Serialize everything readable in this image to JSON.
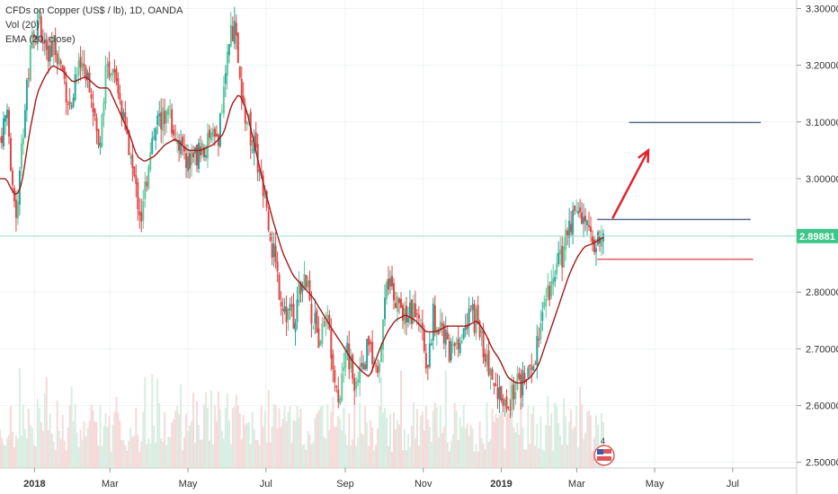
{
  "legend": {
    "title": "CFDs on Copper (US$ / lb), 1D, OANDA",
    "vol": "Vol (20)",
    "ema": "EMA (20, close)"
  },
  "colors": {
    "up": "#26a69a",
    "up_light": "#5ec99b",
    "down": "#e04646",
    "ema": "#a01a1a",
    "volume_up": "#d8eee2",
    "volume_down": "#f6dada",
    "current_line": "#9edbc3",
    "price_tag": "#3ec78a",
    "resistance": "#5b6c8f",
    "support": "#e55a6a",
    "arrow": "#e0242f"
  },
  "current_price_label": "2.89881",
  "flag_label": "4",
  "chart_data": {
    "type": "candlestick",
    "title": "CFDs on Copper (US$ / lb), 1D, OANDA",
    "y_ticks": [
      "3.30000",
      "3.20000",
      "3.10000",
      "3.00000",
      "2.80000",
      "2.70000",
      "2.60000",
      "2.50000"
    ],
    "y_tick_values": [
      3.3,
      3.2,
      3.1,
      3.0,
      2.8,
      2.7,
      2.6,
      2.5
    ],
    "ylim": [
      2.49,
      3.315
    ],
    "x_labels": [
      {
        "label": "2018",
        "t": 0,
        "bold": true
      },
      {
        "label": "Mar",
        "t": 59,
        "bold": false
      },
      {
        "label": "May",
        "t": 120,
        "bold": false
      },
      {
        "label": "Jul",
        "t": 181,
        "bold": false
      },
      {
        "label": "Sep",
        "t": 243,
        "bold": false
      },
      {
        "label": "Nov",
        "t": 304,
        "bold": false
      },
      {
        "label": "2019",
        "t": 365,
        "bold": true
      },
      {
        "label": "Mar",
        "t": 424,
        "bold": false
      },
      {
        "label": "May",
        "t": 485,
        "bold": false
      },
      {
        "label": "Jul",
        "t": 546,
        "bold": false
      }
    ],
    "xlim_days": [
      -27,
      596
    ],
    "last_day": 445,
    "current_price": 2.89881,
    "price_path": [
      [
        -27,
        3.07
      ],
      [
        -22,
        3.12
      ],
      [
        -18,
        2.98
      ],
      [
        -14,
        2.93
      ],
      [
        -10,
        3.05
      ],
      [
        -6,
        3.17
      ],
      [
        -2,
        3.24
      ],
      [
        3,
        3.29
      ],
      [
        10,
        3.2
      ],
      [
        16,
        3.23
      ],
      [
        22,
        3.19
      ],
      [
        28,
        3.12
      ],
      [
        33,
        3.19
      ],
      [
        38,
        3.21
      ],
      [
        44,
        3.17
      ],
      [
        50,
        3.05
      ],
      [
        56,
        3.2
      ],
      [
        62,
        3.18
      ],
      [
        68,
        3.11
      ],
      [
        74,
        3.05
      ],
      [
        80,
        2.97
      ],
      [
        84,
        2.93
      ],
      [
        90,
        3.05
      ],
      [
        96,
        3.1
      ],
      [
        104,
        3.12
      ],
      [
        112,
        3.07
      ],
      [
        120,
        3.03
      ],
      [
        128,
        3.05
      ],
      [
        136,
        3.06
      ],
      [
        144,
        3.07
      ],
      [
        150,
        3.2
      ],
      [
        156,
        3.28
      ],
      [
        162,
        3.13
      ],
      [
        168,
        3.09
      ],
      [
        174,
        3.03
      ],
      [
        180,
        2.96
      ],
      [
        186,
        2.88
      ],
      [
        192,
        2.8
      ],
      [
        198,
        2.76
      ],
      [
        204,
        2.76
      ],
      [
        210,
        2.84
      ],
      [
        216,
        2.77
      ],
      [
        222,
        2.72
      ],
      [
        228,
        2.76
      ],
      [
        234,
        2.68
      ],
      [
        238,
        2.61
      ],
      [
        244,
        2.71
      ],
      [
        250,
        2.63
      ],
      [
        256,
        2.66
      ],
      [
        262,
        2.71
      ],
      [
        268,
        2.66
      ],
      [
        274,
        2.79
      ],
      [
        280,
        2.81
      ],
      [
        286,
        2.76
      ],
      [
        292,
        2.77
      ],
      [
        298,
        2.76
      ],
      [
        304,
        2.72
      ],
      [
        308,
        2.66
      ],
      [
        312,
        2.76
      ],
      [
        318,
        2.74
      ],
      [
        324,
        2.7
      ],
      [
        330,
        2.71
      ],
      [
        336,
        2.75
      ],
      [
        342,
        2.76
      ],
      [
        348,
        2.74
      ],
      [
        354,
        2.68
      ],
      [
        358,
        2.65
      ],
      [
        364,
        2.63
      ],
      [
        370,
        2.6
      ],
      [
        376,
        2.63
      ],
      [
        382,
        2.64
      ],
      [
        388,
        2.65
      ],
      [
        394,
        2.73
      ],
      [
        400,
        2.79
      ],
      [
        406,
        2.82
      ],
      [
        412,
        2.86
      ],
      [
        418,
        2.92
      ],
      [
        424,
        2.95
      ],
      [
        430,
        2.93
      ],
      [
        436,
        2.9
      ],
      [
        440,
        2.88
      ],
      [
        445,
        2.9
      ]
    ],
    "ema_path": [
      [
        -27,
        3.0
      ],
      [
        -22,
        3.0
      ],
      [
        -18,
        2.98
      ],
      [
        -14,
        2.97
      ],
      [
        -10,
        2.99
      ],
      [
        -4,
        3.08
      ],
      [
        2,
        3.15
      ],
      [
        8,
        3.18
      ],
      [
        14,
        3.2
      ],
      [
        22,
        3.19
      ],
      [
        30,
        3.17
      ],
      [
        40,
        3.18
      ],
      [
        50,
        3.16
      ],
      [
        58,
        3.16
      ],
      [
        66,
        3.12
      ],
      [
        74,
        3.08
      ],
      [
        80,
        3.04
      ],
      [
        86,
        3.03
      ],
      [
        94,
        3.04
      ],
      [
        102,
        3.06
      ],
      [
        110,
        3.07
      ],
      [
        120,
        3.05
      ],
      [
        130,
        3.05
      ],
      [
        140,
        3.06
      ],
      [
        148,
        3.08
      ],
      [
        154,
        3.13
      ],
      [
        160,
        3.15
      ],
      [
        166,
        3.12
      ],
      [
        172,
        3.06
      ],
      [
        178,
        3.0
      ],
      [
        186,
        2.93
      ],
      [
        194,
        2.87
      ],
      [
        202,
        2.83
      ],
      [
        210,
        2.81
      ],
      [
        218,
        2.79
      ],
      [
        226,
        2.76
      ],
      [
        234,
        2.73
      ],
      [
        240,
        2.71
      ],
      [
        248,
        2.68
      ],
      [
        256,
        2.66
      ],
      [
        262,
        2.65
      ],
      [
        270,
        2.7
      ],
      [
        276,
        2.73
      ],
      [
        282,
        2.75
      ],
      [
        290,
        2.76
      ],
      [
        298,
        2.75
      ],
      [
        306,
        2.73
      ],
      [
        314,
        2.73
      ],
      [
        322,
        2.74
      ],
      [
        330,
        2.74
      ],
      [
        338,
        2.74
      ],
      [
        346,
        2.75
      ],
      [
        352,
        2.73
      ],
      [
        358,
        2.7
      ],
      [
        364,
        2.68
      ],
      [
        370,
        2.65
      ],
      [
        376,
        2.64
      ],
      [
        382,
        2.64
      ],
      [
        388,
        2.65
      ],
      [
        394,
        2.67
      ],
      [
        400,
        2.71
      ],
      [
        406,
        2.75
      ],
      [
        412,
        2.79
      ],
      [
        418,
        2.83
      ],
      [
        424,
        2.86
      ],
      [
        430,
        2.88
      ],
      [
        436,
        2.885
      ],
      [
        440,
        2.89
      ],
      [
        445,
        2.897
      ]
    ],
    "drawings": {
      "upper_target": {
        "x1": 465,
        "x2": 568,
        "y": 3.099
      },
      "resistance": {
        "x1": 440,
        "x2": 560,
        "y": 2.928
      },
      "support": {
        "x1": 440,
        "x2": 562,
        "y": 2.858
      },
      "arrow": {
        "x1": 452,
        "y1": 2.93,
        "x2": 480,
        "y2": 3.05
      }
    }
  }
}
